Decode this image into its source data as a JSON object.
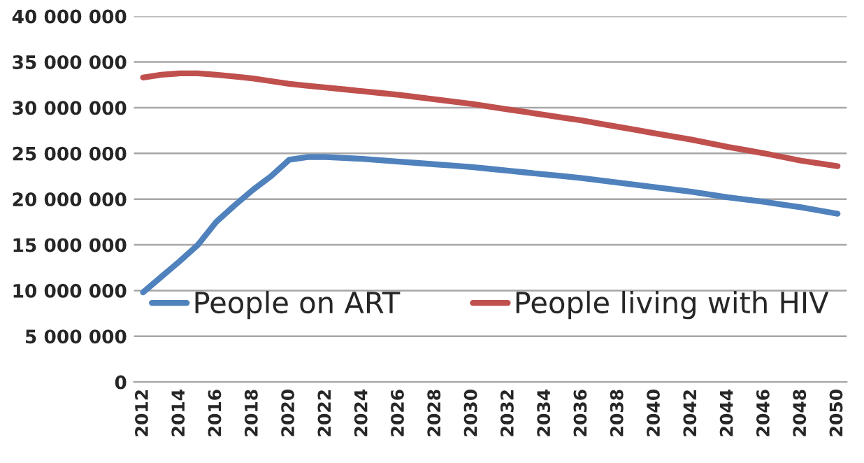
{
  "chart_data": {
    "type": "line",
    "categories": [
      "2012",
      null,
      "2014",
      null,
      "2016",
      null,
      "2018",
      null,
      "2020",
      null,
      "2022",
      null,
      "2024",
      null,
      "2026",
      null,
      "2028",
      null,
      "2030",
      null,
      "2032",
      null,
      "2034",
      null,
      "2036",
      null,
      "2038",
      null,
      "2040",
      null,
      "2042",
      null,
      "2044",
      null,
      "2046",
      null,
      "2048",
      null,
      "2050"
    ],
    "series": [
      {
        "name": "People on ART",
        "color": "#4f81bd",
        "values": [
          9800000,
          11500000,
          13200000,
          15000000,
          17500000,
          19300000,
          21000000,
          22500000,
          24300000,
          24600000,
          24600000,
          24500000,
          24400000,
          24250000,
          24100000,
          23950000,
          23800000,
          23650000,
          23500000,
          23300000,
          23100000,
          22900000,
          22700000,
          22500000,
          22300000,
          22050000,
          21800000,
          21550000,
          21300000,
          21050000,
          20800000,
          20500000,
          20200000,
          19950000,
          19700000,
          19400000,
          19100000,
          18750000,
          18400000
        ]
      },
      {
        "name": "People living with HIV",
        "color": "#c0504d",
        "values": [
          33300000,
          33600000,
          33750000,
          33750000,
          33600000,
          33400000,
          33200000,
          32900000,
          32600000,
          32400000,
          32200000,
          32000000,
          31800000,
          31600000,
          31400000,
          31150000,
          30900000,
          30650000,
          30400000,
          30100000,
          29800000,
          29500000,
          29200000,
          28900000,
          28600000,
          28250000,
          27900000,
          27550000,
          27200000,
          26850000,
          26500000,
          26100000,
          25700000,
          25350000,
          25000000,
          24600000,
          24200000,
          23900000,
          23600000
        ]
      }
    ],
    "ylim": [
      0,
      40000000
    ],
    "yticks": [
      {
        "value": 0,
        "label": "0"
      },
      {
        "value": 5000000,
        "label": "5 000 000"
      },
      {
        "value": 10000000,
        "label": "10 000 000"
      },
      {
        "value": 15000000,
        "label": "15 000 000"
      },
      {
        "value": 20000000,
        "label": "20 000 000"
      },
      {
        "value": 25000000,
        "label": "25 000 000"
      },
      {
        "value": 30000000,
        "label": "30 000 000"
      },
      {
        "value": 35000000,
        "label": "35 000 000"
      },
      {
        "value": 40000000,
        "label": "40 000 000"
      }
    ],
    "grid": "y",
    "legend": "bottom",
    "marker": "none",
    "line_style": "solid"
  }
}
